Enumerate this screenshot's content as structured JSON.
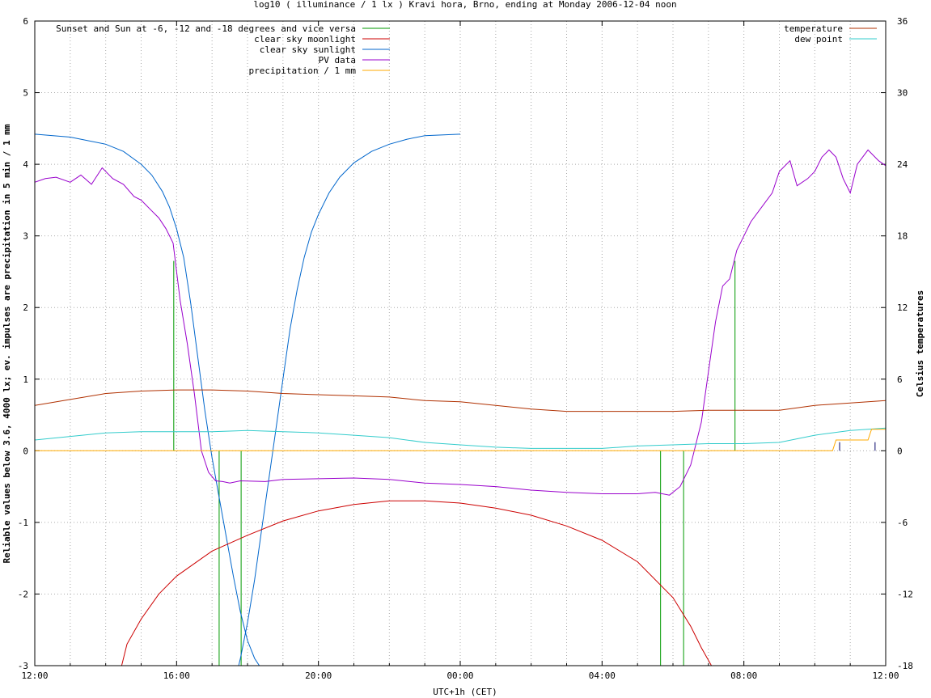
{
  "chart_data": {
    "type": "line",
    "title": "log10 ( illuminance / 1 lx ) Kravi hora, Brno, ending at Monday 2006-12-04 noon",
    "xlabel": "UTC+1h (CET)",
    "ylabel": "Reliable values below 3.6, 4000 lx; ev. impulses are precipitation in 5 min / 1 mm",
    "y2label": "Celsius temperatures",
    "x_unit": "hours from 12:00",
    "xlim": [
      0,
      24
    ],
    "ylim": [
      -3,
      6
    ],
    "y2lim": [
      -18,
      36
    ],
    "x_ticks": [
      "12:00",
      "16:00",
      "20:00",
      "00:00",
      "04:00",
      "08:00",
      "12:00"
    ],
    "y_ticks": [
      "-3",
      "-2",
      "-1",
      "0",
      "1",
      "2",
      "3",
      "4",
      "5",
      "6"
    ],
    "y2_ticks": [
      "-18",
      "-12",
      "-6",
      "0",
      "6",
      "12",
      "18",
      "24",
      "30",
      "36"
    ],
    "grid": true,
    "legend_left": [
      "Sunset and Sun at -6, -12 and -18 degrees and vice versa",
      "clear sky moonlight",
      "clear sky sunlight",
      "PV data",
      "precipitation / 1 mm"
    ],
    "legend_right": [
      "temperature",
      "dew point"
    ],
    "series": [
      {
        "name": "clear sky sunlight",
        "color": "#0066cc",
        "axis": "left",
        "x": [
          0,
          1,
          2,
          2.5,
          3,
          3.3,
          3.6,
          3.8,
          4,
          4.2,
          4.4,
          4.6,
          4.8,
          5,
          5.2,
          5.4,
          5.6,
          5.8,
          6,
          6.2,
          6.4,
          6.55
        ],
        "y": [
          4.42,
          4.38,
          4.28,
          4.18,
          4.0,
          3.85,
          3.62,
          3.4,
          3.1,
          2.7,
          2.05,
          1.3,
          0.55,
          -0.1,
          -0.65,
          -1.2,
          -1.75,
          -2.25,
          -2.65,
          -2.9,
          -3.05,
          -3.1
        ]
      },
      {
        "name": "clear sky sunlight",
        "color": "#0066cc",
        "axis": "left",
        "x": [
          5.7,
          5.8,
          6,
          6.2,
          6.4,
          6.6,
          6.8,
          7.0,
          7.2,
          7.4,
          7.6,
          7.8,
          8.0,
          8.3,
          8.6,
          9,
          9.5,
          10,
          10.5,
          11,
          12
        ],
        "y": [
          -3.1,
          -2.9,
          -2.4,
          -1.8,
          -1.1,
          -0.4,
          0.3,
          1.0,
          1.7,
          2.25,
          2.7,
          3.05,
          3.3,
          3.6,
          3.82,
          4.02,
          4.18,
          4.28,
          4.35,
          4.4,
          4.42
        ]
      },
      {
        "name": "clear sky moonlight",
        "color": "#cc0000",
        "axis": "left",
        "x": [
          2.4,
          2.6,
          3,
          3.5,
          4,
          5,
          6,
          7,
          8,
          9,
          10,
          11,
          12,
          13,
          14,
          15,
          16,
          17,
          18,
          18.5,
          18.8,
          19.2
        ],
        "y": [
          -3.1,
          -2.7,
          -2.35,
          -2.0,
          -1.75,
          -1.4,
          -1.18,
          -0.98,
          -0.84,
          -0.75,
          -0.7,
          -0.7,
          -0.73,
          -0.8,
          -0.9,
          -1.05,
          -1.25,
          -1.55,
          -2.05,
          -2.45,
          -2.75,
          -3.1
        ]
      },
      {
        "name": "PV data",
        "color": "#9900cc",
        "axis": "left",
        "x": [
          0,
          0.3,
          0.6,
          1,
          1.3,
          1.6,
          1.9,
          2.2,
          2.5,
          2.8,
          3.0,
          3.3,
          3.5,
          3.7,
          3.9,
          4.1,
          4.3,
          4.5,
          4.7,
          4.9,
          5.1,
          5.3,
          5.5,
          5.8,
          6.5,
          7,
          8,
          9,
          10,
          11,
          12,
          13,
          14,
          15,
          16,
          17,
          17.5,
          17.9,
          18.2,
          18.5,
          18.8,
          19.0,
          19.2,
          19.4,
          19.6,
          19.8,
          20.0,
          20.2,
          20.5,
          20.8,
          21.0,
          21.3,
          21.5,
          21.8,
          22.0,
          22.2,
          22.4,
          22.6,
          22.8,
          23.0,
          23.2,
          23.5,
          23.8,
          24
        ],
        "y": [
          3.75,
          3.8,
          3.82,
          3.75,
          3.85,
          3.72,
          3.95,
          3.8,
          3.72,
          3.55,
          3.5,
          3.35,
          3.25,
          3.1,
          2.9,
          2.1,
          1.5,
          0.8,
          0.0,
          -0.3,
          -0.42,
          -0.43,
          -0.45,
          -0.42,
          -0.43,
          -0.4,
          -0.39,
          -0.38,
          -0.4,
          -0.45,
          -0.47,
          -0.5,
          -0.55,
          -0.58,
          -0.6,
          -0.6,
          -0.58,
          -0.62,
          -0.5,
          -0.2,
          0.4,
          1.1,
          1.8,
          2.3,
          2.4,
          2.8,
          3.0,
          3.2,
          3.4,
          3.6,
          3.9,
          4.05,
          3.7,
          3.8,
          3.9,
          4.1,
          4.2,
          4.1,
          3.8,
          3.6,
          4.0,
          4.2,
          4.05,
          3.98
        ]
      },
      {
        "name": "temperature",
        "color": "#b03000",
        "axis": "right",
        "x": [
          0,
          1,
          2,
          3,
          4,
          5,
          6,
          7,
          8,
          9,
          10,
          11,
          12,
          13,
          14,
          15,
          16,
          17,
          18,
          19,
          20,
          21,
          22,
          23,
          24
        ],
        "y": [
          3.8,
          4.3,
          4.8,
          5.0,
          5.1,
          5.1,
          5.0,
          4.8,
          4.7,
          4.6,
          4.5,
          4.2,
          4.1,
          3.8,
          3.5,
          3.3,
          3.3,
          3.3,
          3.3,
          3.4,
          3.4,
          3.4,
          3.8,
          4.0,
          4.2
        ]
      },
      {
        "name": "dew point",
        "color": "#33cccc",
        "axis": "right",
        "x": [
          0,
          1,
          2,
          3,
          4,
          5,
          6,
          7,
          8,
          9,
          10,
          11,
          12,
          13,
          14,
          15,
          16,
          17,
          18,
          19,
          20,
          21,
          22,
          23,
          24
        ],
        "y": [
          0.9,
          1.2,
          1.5,
          1.6,
          1.6,
          1.6,
          1.7,
          1.6,
          1.5,
          1.3,
          1.1,
          0.7,
          0.5,
          0.3,
          0.2,
          0.2,
          0.2,
          0.4,
          0.5,
          0.6,
          0.6,
          0.7,
          1.3,
          1.7,
          1.9
        ]
      },
      {
        "name": "precipitation / 1 mm",
        "color": "#ffaa00",
        "axis": "left",
        "x": [
          0,
          22.5,
          22.6,
          23.5,
          23.6,
          24
        ],
        "y": [
          0,
          0,
          0.15,
          0.15,
          0.3,
          0.3
        ]
      }
    ],
    "sun_events_x": [
      3.92,
      5.2,
      5.82,
      17.65,
      18.3,
      19.75
    ],
    "sun_events_y": [
      2.65,
      -3.0,
      -3.0,
      -3.0,
      -3.0,
      2.65
    ],
    "sun_events_color": "#009900",
    "precip_impulses_x": [
      22.7,
      23.7
    ]
  }
}
